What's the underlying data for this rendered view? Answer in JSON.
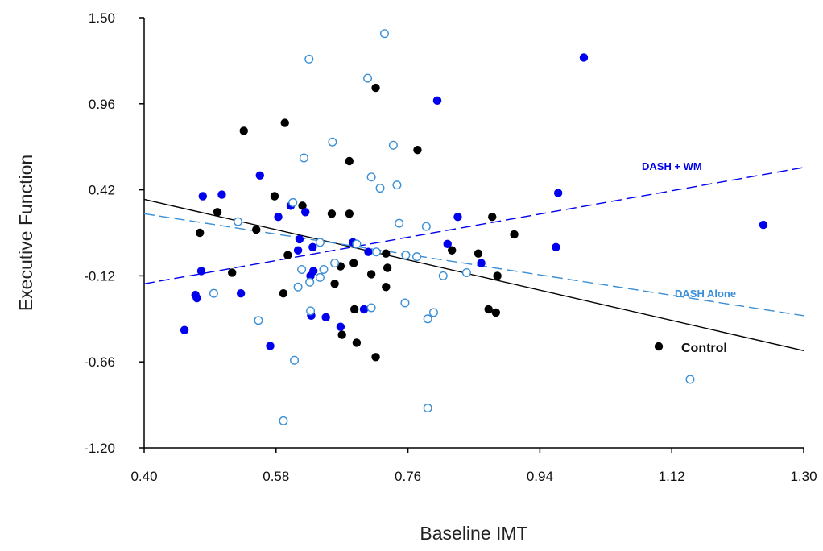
{
  "chart_data": {
    "type": "scatter",
    "xlabel": "Baseline IMT",
    "ylabel": "Executive Function",
    "xlim": [
      0.4,
      1.3
    ],
    "ylim": [
      -1.2,
      1.5
    ],
    "x_ticks": [
      "0.40",
      "0.58",
      "0.76",
      "0.94",
      "1.12",
      "1.30"
    ],
    "y_ticks": [
      "1.50",
      "0.96",
      "0.42",
      "-0.12",
      "-0.66",
      "-1.20"
    ],
    "grid": false,
    "colors": {
      "control": "#000000",
      "dash_wm": "#0000ee",
      "dash_alone": "#3a8fd6"
    },
    "legend_label": "Control",
    "series": [
      {
        "key": "control",
        "marker": "filled",
        "line_label": "",
        "fit": [
          [
            0.4,
            0.36
          ],
          [
            1.3,
            -0.59
          ]
        ],
        "points": [
          [
            0.536,
            0.79
          ],
          [
            0.592,
            0.84
          ],
          [
            0.716,
            1.06
          ],
          [
            0.773,
            0.67
          ],
          [
            0.68,
            0.6
          ],
          [
            0.578,
            0.38
          ],
          [
            0.616,
            0.32
          ],
          [
            0.5,
            0.28
          ],
          [
            0.656,
            0.27
          ],
          [
            0.68,
            0.27
          ],
          [
            0.875,
            0.25
          ],
          [
            0.476,
            0.15
          ],
          [
            0.553,
            0.17
          ],
          [
            0.905,
            0.14
          ],
          [
            0.73,
            0.02
          ],
          [
            0.596,
            0.01
          ],
          [
            0.82,
            0.04
          ],
          [
            0.856,
            0.02
          ],
          [
            0.66,
            -0.04
          ],
          [
            0.668,
            -0.06
          ],
          [
            0.686,
            -0.04
          ],
          [
            0.732,
            -0.07
          ],
          [
            0.52,
            -0.1
          ],
          [
            0.71,
            -0.11
          ],
          [
            0.59,
            -0.23
          ],
          [
            0.66,
            -0.17
          ],
          [
            0.882,
            -0.12
          ],
          [
            0.73,
            -0.19
          ],
          [
            0.687,
            -0.33
          ],
          [
            0.87,
            -0.33
          ],
          [
            0.88,
            -0.35
          ],
          [
            0.67,
            -0.49
          ],
          [
            0.69,
            -0.54
          ],
          [
            0.716,
            -0.63
          ]
        ]
      },
      {
        "key": "dash_wm",
        "marker": "filled",
        "line_label": "DASH + WM",
        "fit": [
          [
            0.4,
            -0.17
          ],
          [
            1.3,
            0.56
          ]
        ],
        "points": [
          [
            1.0,
            1.25
          ],
          [
            0.8,
            0.98
          ],
          [
            0.558,
            0.51
          ],
          [
            0.48,
            0.38
          ],
          [
            0.506,
            0.39
          ],
          [
            0.965,
            0.4
          ],
          [
            0.6,
            0.32
          ],
          [
            0.62,
            0.28
          ],
          [
            0.583,
            0.25
          ],
          [
            0.828,
            0.25
          ],
          [
            1.245,
            0.2
          ],
          [
            0.612,
            0.11
          ],
          [
            0.685,
            0.09
          ],
          [
            0.814,
            0.08
          ],
          [
            0.962,
            0.06
          ],
          [
            0.63,
            0.06
          ],
          [
            0.61,
            0.04
          ],
          [
            0.706,
            0.03
          ],
          [
            0.86,
            -0.04
          ],
          [
            0.478,
            -0.09
          ],
          [
            0.631,
            -0.09
          ],
          [
            0.627,
            -0.12
          ],
          [
            0.47,
            -0.24
          ],
          [
            0.532,
            -0.23
          ],
          [
            0.472,
            -0.26
          ],
          [
            0.7,
            -0.33
          ],
          [
            0.628,
            -0.37
          ],
          [
            0.648,
            -0.38
          ],
          [
            0.668,
            -0.44
          ],
          [
            0.455,
            -0.46
          ],
          [
            0.572,
            -0.56
          ]
        ]
      },
      {
        "key": "dash_alone",
        "marker": "hollow",
        "line_label": "DASH Alone",
        "fit": [
          [
            0.4,
            0.27
          ],
          [
            1.3,
            -0.37
          ]
        ],
        "points": [
          [
            0.728,
            1.4
          ],
          [
            0.625,
            1.24
          ],
          [
            0.705,
            1.12
          ],
          [
            0.657,
            0.72
          ],
          [
            0.74,
            0.7
          ],
          [
            0.618,
            0.62
          ],
          [
            0.71,
            0.5
          ],
          [
            0.722,
            0.43
          ],
          [
            0.745,
            0.45
          ],
          [
            0.603,
            0.34
          ],
          [
            0.528,
            0.22
          ],
          [
            0.748,
            0.21
          ],
          [
            0.785,
            0.19
          ],
          [
            0.69,
            0.08
          ],
          [
            0.717,
            0.03
          ],
          [
            0.64,
            0.09
          ],
          [
            0.757,
            0.01
          ],
          [
            0.772,
            0.0
          ],
          [
            0.66,
            -0.04
          ],
          [
            0.645,
            -0.08
          ],
          [
            0.615,
            -0.08
          ],
          [
            0.64,
            -0.13
          ],
          [
            0.808,
            -0.12
          ],
          [
            0.84,
            -0.1
          ],
          [
            0.626,
            -0.16
          ],
          [
            0.61,
            -0.19
          ],
          [
            0.495,
            -0.23
          ],
          [
            0.756,
            -0.29
          ],
          [
            0.627,
            -0.34
          ],
          [
            0.71,
            -0.32
          ],
          [
            0.795,
            -0.35
          ],
          [
            0.787,
            -0.39
          ],
          [
            0.556,
            -0.4
          ],
          [
            0.605,
            -0.65
          ],
          [
            1.145,
            -0.77
          ],
          [
            0.787,
            -0.95
          ],
          [
            0.59,
            -1.03
          ]
        ]
      }
    ]
  }
}
